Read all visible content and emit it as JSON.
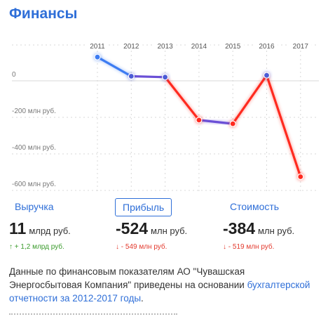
{
  "section_title": "Финансы",
  "chart_data": {
    "type": "line",
    "x": [
      "2011",
      "2012",
      "2013",
      "2014",
      "2015",
      "2016",
      "2017"
    ],
    "values": [
      130,
      25,
      20,
      -215,
      -235,
      30,
      -525
    ],
    "ylim": [
      -600,
      150
    ],
    "yticks": [
      0,
      -200,
      -400,
      -600
    ],
    "ytick_labels": [
      "0",
      "-200 млн руб.",
      "-400 млн руб.",
      "-600 млн руб."
    ],
    "grid": true,
    "colors": {
      "rise": "#3d7cf2",
      "flat": "#6a4fd6",
      "fall": "#ff2a1f",
      "grid": "#d8d8d8"
    }
  },
  "tabs": [
    {
      "label": "Выручка",
      "active": false
    },
    {
      "label": "Прибыль",
      "active": true
    },
    {
      "label": "Стоимость",
      "active": false
    }
  ],
  "metrics": [
    {
      "value": "11",
      "unit": "млрд руб.",
      "delta": "↑ + 1,2 млрд руб.",
      "trend": "up"
    },
    {
      "value": "-524",
      "unit": "млн руб.",
      "delta": "↓ - 549 млн руб.",
      "trend": "down"
    },
    {
      "value": "-384",
      "unit": "млн руб.",
      "delta": "↓ - 519 млн руб.",
      "trend": "down"
    }
  ],
  "note": {
    "text": "Данные по финансовым показателям АО \"Чувашская Энергосбытовая Компания\" приведены на основании ",
    "link": "бухгалтерской отчетности за 2012-2017 годы",
    "end": "."
  },
  "colors": {
    "accent": "#2f6fd8",
    "up": "#3a9b2c",
    "down": "#e33a2e"
  }
}
